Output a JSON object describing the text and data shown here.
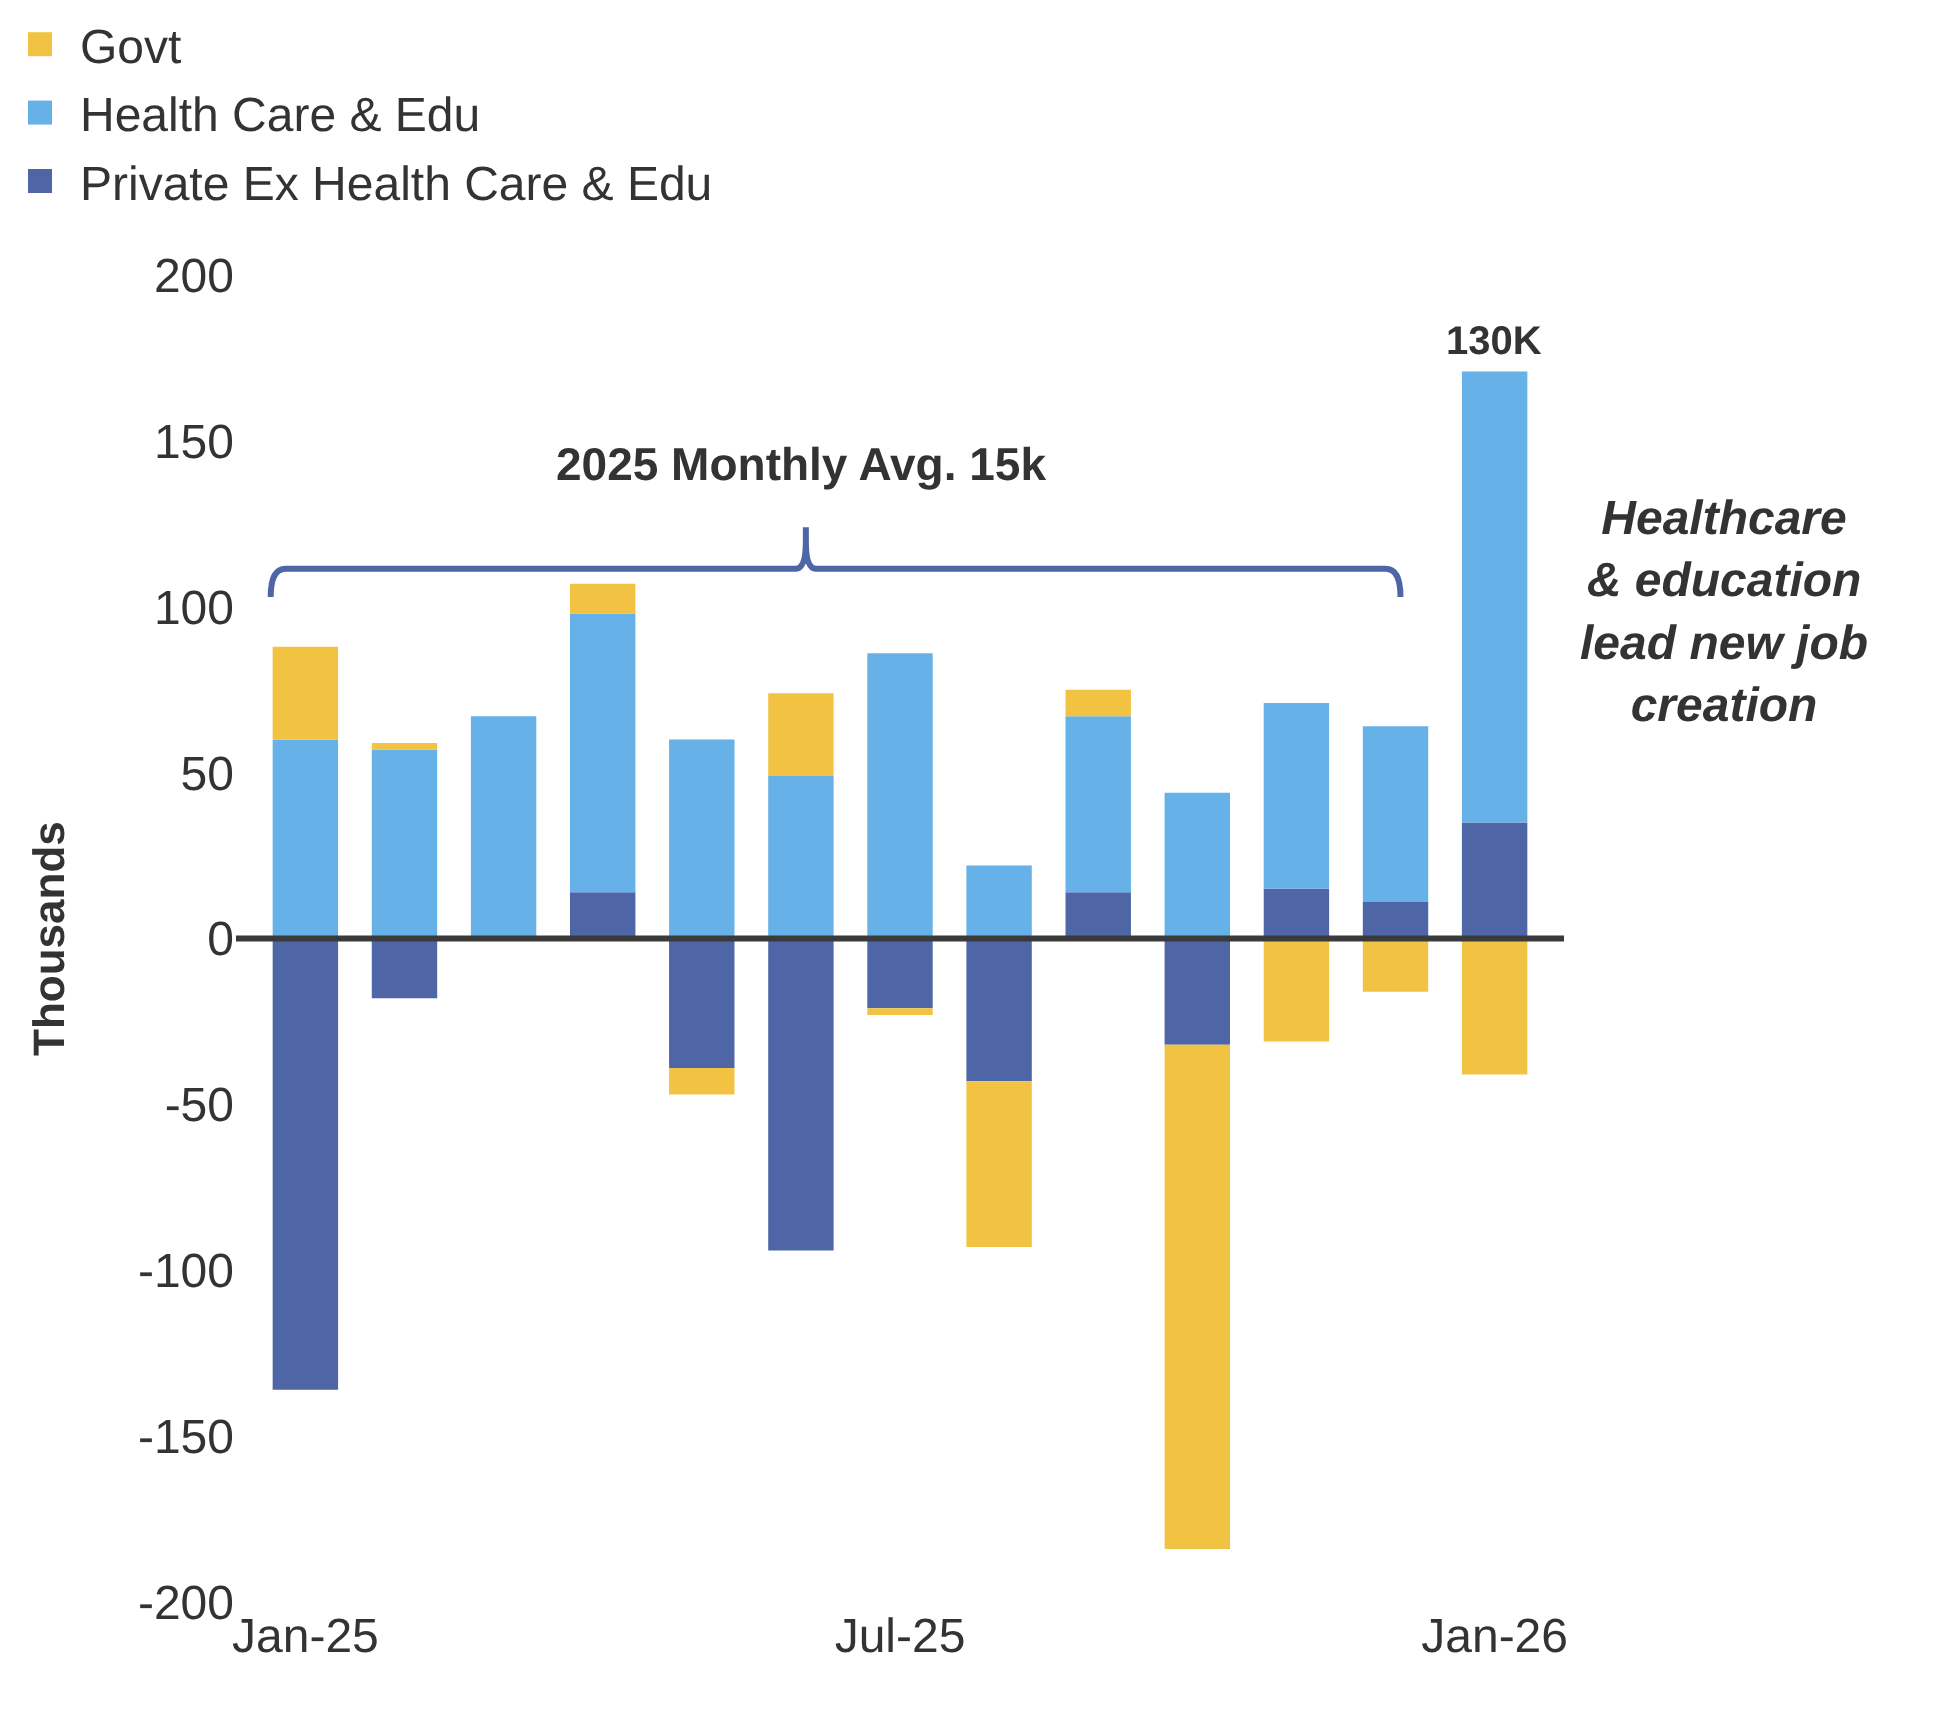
{
  "chart_data": {
    "type": "bar",
    "stacked": true,
    "ylabel": "Thousands",
    "categories": [
      "Jan-25",
      null,
      null,
      null,
      null,
      null,
      "Jul-25",
      null,
      null,
      null,
      null,
      null,
      "Jan-26"
    ],
    "series": [
      {
        "name": "Private Ex Health Care & Edu",
        "color": "#4e66a6",
        "values": [
          -136,
          -18,
          0,
          14,
          -39,
          -94,
          -21,
          -43,
          14,
          -32,
          15,
          11,
          35
        ]
      },
      {
        "name": "Health Care & Edu",
        "color": "#65b1e8",
        "values": [
          60,
          57,
          67,
          84,
          60,
          49,
          86,
          22,
          53,
          44,
          56,
          53,
          136
        ]
      },
      {
        "name": "Govt",
        "color": "#f2c342",
        "values": [
          28,
          2,
          0,
          9,
          -8,
          25,
          -2,
          -50,
          8,
          -152,
          -31,
          -16,
          -41
        ]
      }
    ],
    "ylim": [
      -200,
      200
    ],
    "yticks": [
      -200,
      -150,
      -100,
      -50,
      0,
      50,
      100,
      150,
      200
    ],
    "ref_lines": [
      {
        "axis": "y",
        "value": 0,
        "color": "#3a3a3a"
      }
    ],
    "legend": "top left",
    "annotations": [
      "2025 Monthly Avg. 15k",
      {
        "text": "130K",
        "x": "Jan-26",
        "y": 171
      },
      "Healthcare\n& education\nlead new job\ncreation"
    ]
  }
}
